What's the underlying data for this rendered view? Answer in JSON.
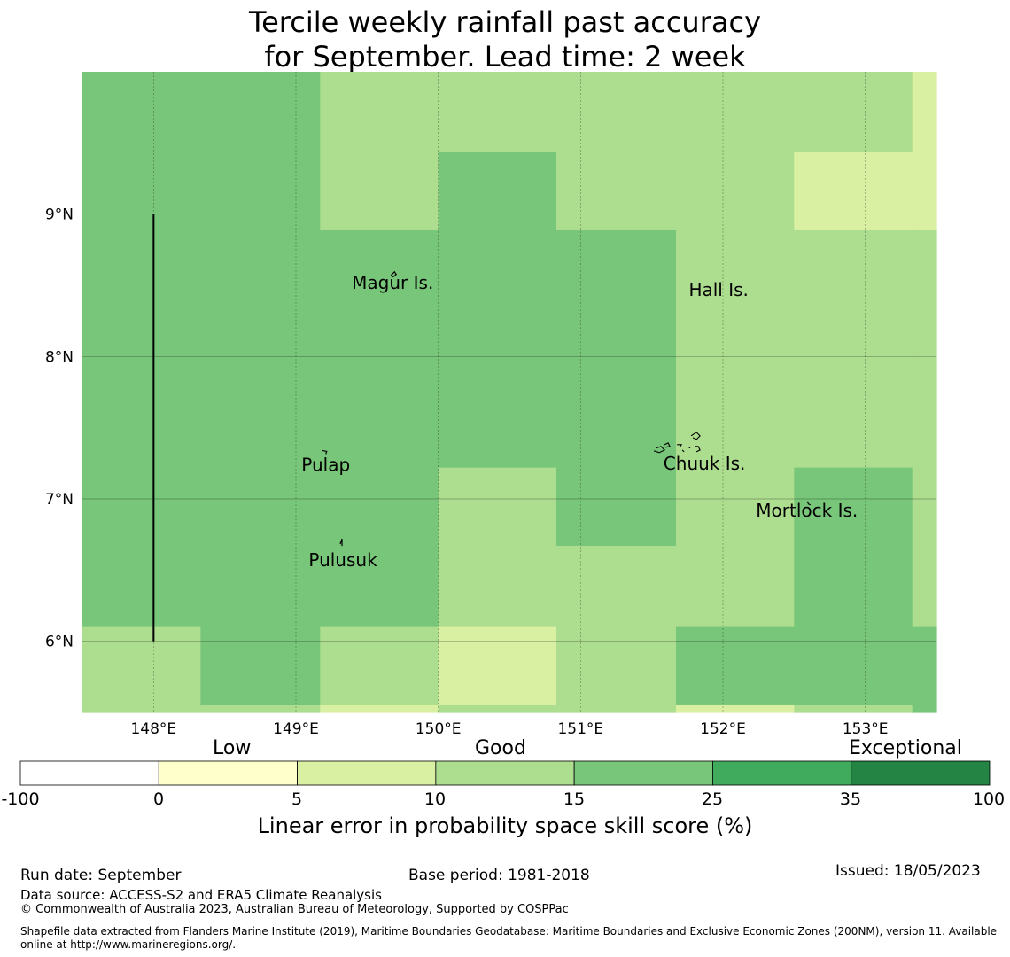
{
  "title": {
    "line1": "Tercile weekly rainfall past accuracy",
    "line2": "for September. Lead time: 2 week"
  },
  "map": {
    "lon_range": [
      147.5,
      153.5
    ],
    "lat_range": [
      5.5,
      10.0
    ],
    "x_ticks": [
      {
        "value": 148,
        "label": "148°E"
      },
      {
        "value": 149,
        "label": "149°E"
      },
      {
        "value": 150,
        "label": "150°E"
      },
      {
        "value": 151,
        "label": "151°E"
      },
      {
        "value": 152,
        "label": "152°E"
      },
      {
        "value": 153,
        "label": "153°E"
      }
    ],
    "y_ticks": [
      {
        "value": 9,
        "label": "9°N"
      },
      {
        "value": 8,
        "label": "8°N"
      },
      {
        "value": 7,
        "label": "7°N"
      },
      {
        "value": 6,
        "label": "6°N"
      }
    ],
    "colors": {
      "c0": "#ffffcc",
      "c1": "#d9f0a3",
      "c2": "#addd8e",
      "c3": "#78c679",
      "c4": "#41ab5d",
      "c5": "#238443"
    },
    "grid_cells": [
      {
        "lon": [
          147.5,
          149.17
        ],
        "lat": [
          6.1,
          10.0
        ],
        "cat": "c3"
      },
      {
        "lon": [
          147.5,
          148.33
        ],
        "lat": [
          5.5,
          6.1
        ],
        "cat": "c2"
      },
      {
        "lon": [
          148.33,
          149.17
        ],
        "lat": [
          5.55,
          6.1
        ],
        "cat": "c3"
      },
      {
        "lon": [
          148.33,
          149.17
        ],
        "lat": [
          5.5,
          5.55
        ],
        "cat": "c2"
      },
      {
        "lon": [
          149.17,
          150.0
        ],
        "lat": [
          8.89,
          10.0
        ],
        "cat": "c2"
      },
      {
        "lon": [
          149.17,
          150.0
        ],
        "lat": [
          6.1,
          8.89
        ],
        "cat": "c3"
      },
      {
        "lon": [
          149.17,
          150.0
        ],
        "lat": [
          5.55,
          6.1
        ],
        "cat": "c2"
      },
      {
        "lon": [
          149.17,
          150.0
        ],
        "lat": [
          5.5,
          5.55
        ],
        "cat": "c1"
      },
      {
        "lon": [
          150.0,
          150.83
        ],
        "lat": [
          9.44,
          10.0
        ],
        "cat": "c2"
      },
      {
        "lon": [
          150.0,
          150.83
        ],
        "lat": [
          7.22,
          9.44
        ],
        "cat": "c3"
      },
      {
        "lon": [
          150.0,
          150.83
        ],
        "lat": [
          6.1,
          7.22
        ],
        "cat": "c2"
      },
      {
        "lon": [
          150.0,
          150.83
        ],
        "lat": [
          5.55,
          6.1
        ],
        "cat": "c1"
      },
      {
        "lon": [
          150.0,
          150.83
        ],
        "lat": [
          5.5,
          5.55
        ],
        "cat": "c2"
      },
      {
        "lon": [
          150.83,
          151.67
        ],
        "lat": [
          8.89,
          10.0
        ],
        "cat": "c2"
      },
      {
        "lon": [
          150.83,
          151.67
        ],
        "lat": [
          6.67,
          8.89
        ],
        "cat": "c3"
      },
      {
        "lon": [
          150.83,
          151.67
        ],
        "lat": [
          5.5,
          6.67
        ],
        "cat": "c2"
      },
      {
        "lon": [
          151.67,
          152.5
        ],
        "lat": [
          6.1,
          10.0
        ],
        "cat": "c2"
      },
      {
        "lon": [
          151.67,
          152.5
        ],
        "lat": [
          5.55,
          6.1
        ],
        "cat": "c3"
      },
      {
        "lon": [
          151.67,
          152.5
        ],
        "lat": [
          5.5,
          5.55
        ],
        "cat": "c1"
      },
      {
        "lon": [
          152.5,
          153.33
        ],
        "lat": [
          9.44,
          10.0
        ],
        "cat": "c2"
      },
      {
        "lon": [
          152.5,
          153.33
        ],
        "lat": [
          8.89,
          9.44
        ],
        "cat": "c1"
      },
      {
        "lon": [
          152.5,
          153.33
        ],
        "lat": [
          7.22,
          8.89
        ],
        "cat": "c2"
      },
      {
        "lon": [
          152.5,
          153.33
        ],
        "lat": [
          5.55,
          7.22
        ],
        "cat": "c3"
      },
      {
        "lon": [
          152.5,
          153.33
        ],
        "lat": [
          5.5,
          5.55
        ],
        "cat": "c2"
      },
      {
        "lon": [
          153.33,
          153.5
        ],
        "lat": [
          9.44,
          10.0
        ],
        "cat": "c1"
      },
      {
        "lon": [
          153.33,
          153.5
        ],
        "lat": [
          8.89,
          9.44
        ],
        "cat": "c1"
      },
      {
        "lon": [
          153.33,
          153.5
        ],
        "lat": [
          6.1,
          8.89
        ],
        "cat": "c2"
      },
      {
        "lon": [
          153.33,
          153.5
        ],
        "lat": [
          5.5,
          6.1
        ],
        "cat": "c3"
      }
    ],
    "boundary_line": {
      "lon": 148.0,
      "lat": [
        6.0,
        9.0
      ]
    },
    "places": [
      {
        "name": "Magur Is.",
        "lon": 149.68,
        "lat": 8.52
      },
      {
        "name": "Hall Is.",
        "lon": 151.97,
        "lat": 8.47
      },
      {
        "name": "Pulap",
        "lon": 149.21,
        "lat": 7.24
      },
      {
        "name": "Chuuk Is.",
        "lon": 151.87,
        "lat": 7.25
      },
      {
        "name": "Mortlock Is.",
        "lon": 152.59,
        "lat": 6.92
      },
      {
        "name": "Pulusuk",
        "lon": 149.33,
        "lat": 6.57
      }
    ]
  },
  "legend": {
    "categories": [
      "Low",
      "Good",
      "Exceptional"
    ],
    "ticks": [
      "-100",
      "0",
      "5",
      "10",
      "15",
      "25",
      "35",
      "100"
    ],
    "colors": [
      "#ffffff",
      "#ffffcc",
      "#d9f0a3",
      "#addd8e",
      "#78c679",
      "#41ab5d",
      "#238443"
    ],
    "label": "Linear error in probability space skill score (%)"
  },
  "footer": {
    "run_date": "Run date: September",
    "base_period": "Base period: 1981-2018",
    "issued": "Issued: 18/05/2023",
    "data_source": "Data source: ACCESS-S2 and ERA5 Climate Reanalysis",
    "copyright": "© Commonwealth of Australia 2023, Australian Bureau of Meteorology, Supported by COSPPac",
    "shapefile_line1": "Shapefile data extracted from Flanders Marine Institute (2019), Maritime Boundaries Geodatabase: Maritime Boundaries and Exclusive Economic Zones (200NM), version 11. Available",
    "shapefile_line2": "online at http://www.marineregions.org/."
  }
}
